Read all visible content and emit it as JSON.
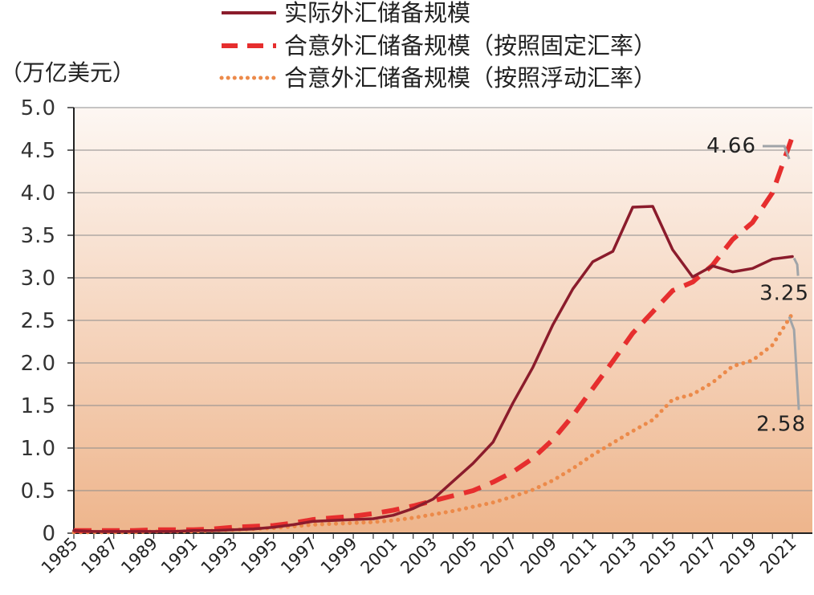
{
  "chart_data": {
    "type": "line",
    "title": "",
    "ylabel": "（万亿美元）",
    "xlabel": "",
    "ylim": [
      0,
      5.0
    ],
    "xlim": [
      1985,
      2022
    ],
    "y_ticks": [
      "0",
      "0.5",
      "1.0",
      "1.5",
      "2.0",
      "2.5",
      "3.0",
      "3.5",
      "4.0",
      "4.5",
      "5.0"
    ],
    "x_tick_labels": [
      "1985",
      "1987",
      "1989",
      "1991",
      "1993",
      "1995",
      "1997",
      "1999",
      "2001",
      "2003",
      "2005",
      "2007",
      "2009",
      "2011",
      "2013",
      "2015",
      "2017",
      "2019",
      "2021"
    ],
    "grid": true,
    "legend_position": "top",
    "x": [
      1985,
      1986,
      1987,
      1988,
      1989,
      1990,
      1991,
      1992,
      1993,
      1994,
      1995,
      1996,
      1997,
      1998,
      1999,
      2000,
      2001,
      2002,
      2003,
      2004,
      2005,
      2006,
      2007,
      2008,
      2009,
      2010,
      2011,
      2012,
      2013,
      2014,
      2015,
      2016,
      2017,
      2018,
      2019,
      2020,
      2021
    ],
    "series": [
      {
        "name": "实际外汇储备规模",
        "style": "solid",
        "color": "#8b1c2c",
        "values": [
          0.03,
          0.02,
          0.02,
          0.02,
          0.02,
          0.02,
          0.03,
          0.03,
          0.04,
          0.05,
          0.07,
          0.1,
          0.14,
          0.15,
          0.16,
          0.17,
          0.21,
          0.29,
          0.4,
          0.61,
          0.82,
          1.07,
          1.53,
          1.95,
          2.45,
          2.87,
          3.19,
          3.31,
          3.83,
          3.84,
          3.33,
          3.01,
          3.14,
          3.07,
          3.11,
          3.22,
          3.25
        ]
      },
      {
        "name": "合意外汇储备规模（按照固定汇率）",
        "style": "dashed",
        "color": "#e62e2e",
        "values": [
          0.03,
          0.03,
          0.03,
          0.03,
          0.04,
          0.04,
          0.04,
          0.05,
          0.07,
          0.08,
          0.09,
          0.12,
          0.16,
          0.18,
          0.2,
          0.23,
          0.27,
          0.32,
          0.38,
          0.44,
          0.5,
          0.6,
          0.72,
          0.88,
          1.1,
          1.38,
          1.7,
          2.02,
          2.35,
          2.6,
          2.85,
          2.95,
          3.15,
          3.45,
          3.65,
          4.0,
          4.66
        ]
      },
      {
        "name": "合意外汇储备规模（按照浮动汇率）",
        "style": "dotted",
        "color": "#ec8a4a",
        "values": [
          0.01,
          0.01,
          0.01,
          0.01,
          0.02,
          0.02,
          0.02,
          0.03,
          0.04,
          0.05,
          0.06,
          0.08,
          0.1,
          0.11,
          0.12,
          0.13,
          0.15,
          0.18,
          0.22,
          0.26,
          0.31,
          0.36,
          0.43,
          0.51,
          0.62,
          0.76,
          0.92,
          1.06,
          1.2,
          1.33,
          1.57,
          1.63,
          1.77,
          1.96,
          2.03,
          2.21,
          2.58
        ]
      }
    ],
    "annotations": [
      {
        "text": "4.66",
        "series": 1
      },
      {
        "text": "3.25",
        "series": 0
      },
      {
        "text": "2.58",
        "series": 2
      }
    ],
    "colors": {
      "background_top": "#fdf7f3",
      "background_bottom": "#eeb58c",
      "grid": "#8c8c8c",
      "callout": "#a0a4a8"
    }
  }
}
